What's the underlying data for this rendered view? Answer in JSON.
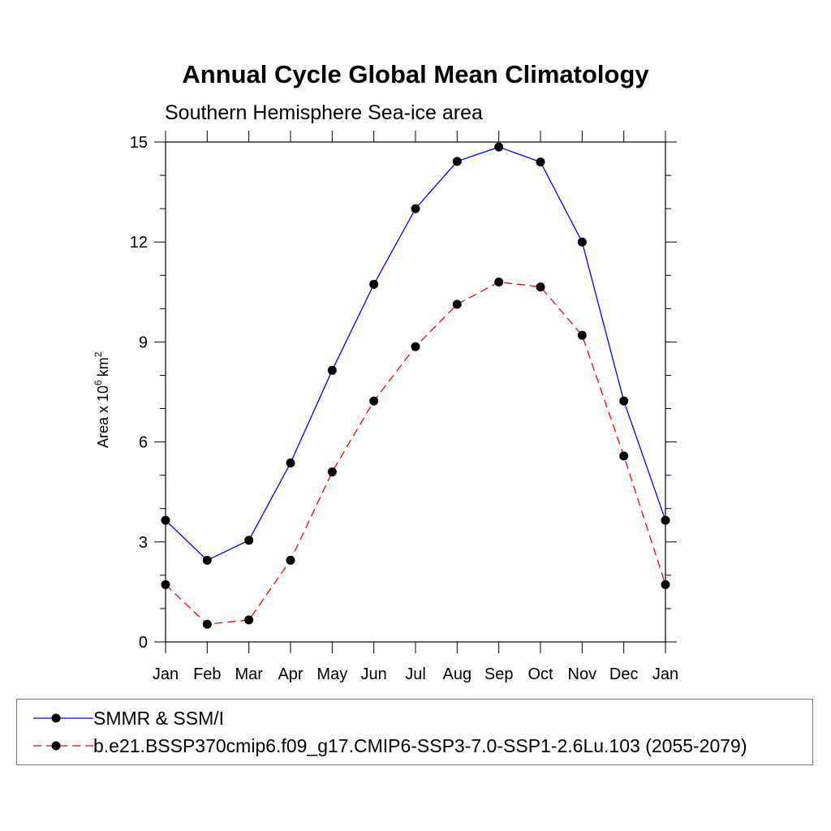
{
  "chart_data": {
    "type": "line",
    "title": "Annual Cycle Global Mean Climatology",
    "subtitle": "Southern Hemisphere Sea-ice area",
    "ylabel": "Area x 10",
    "ylabel_sup1": "6",
    "ylabel_unit": "km",
    "ylabel_sup2": "2",
    "xlabel": "",
    "categories": [
      "Jan",
      "Feb",
      "Mar",
      "Apr",
      "May",
      "Jun",
      "Jul",
      "Aug",
      "Sep",
      "Oct",
      "Nov",
      "Dec",
      "Jan"
    ],
    "ylim": [
      0,
      15
    ],
    "yticks": [
      0,
      3,
      6,
      9,
      12,
      15
    ],
    "grid": false,
    "legend_position": "bottom",
    "series": [
      {
        "name": "SMMR & SSM/I",
        "color": "#0000ff",
        "dash": "solid",
        "marker": "filled-circle",
        "values": [
          3.65,
          2.45,
          3.05,
          5.37,
          8.15,
          10.73,
          13.0,
          14.42,
          14.85,
          14.4,
          12.0,
          7.23,
          3.65
        ]
      },
      {
        "name": "b.e21.BSSP370cmip6.f09_g17.CMIP6-SSP3-7.0-SSP1-2.6Lu.103 (2055-2079)",
        "color": "#ff0000",
        "dash": "dashed",
        "marker": "filled-circle",
        "values": [
          1.72,
          0.53,
          0.66,
          2.45,
          5.1,
          7.23,
          8.86,
          10.13,
          10.8,
          10.65,
          9.2,
          5.58,
          1.72
        ]
      }
    ]
  }
}
